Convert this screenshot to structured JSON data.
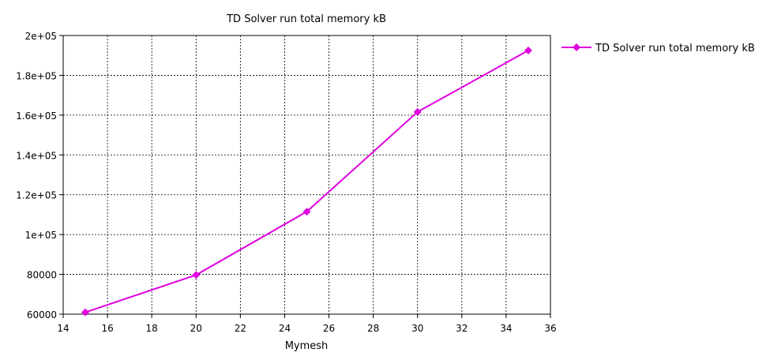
{
  "chart_data": {
    "type": "line",
    "title": "TD Solver run total memory kB",
    "xlabel": "Mymesh",
    "ylabel": "",
    "xlim": [
      14,
      36
    ],
    "ylim": [
      60000,
      200000
    ],
    "x_ticks": [
      14,
      16,
      18,
      20,
      22,
      24,
      26,
      28,
      30,
      32,
      34,
      36
    ],
    "x_tick_labels": [
      "14",
      "16",
      "18",
      "20",
      "22",
      "24",
      "26",
      "28",
      "30",
      "32",
      "34",
      "36"
    ],
    "y_ticks": [
      60000,
      80000,
      100000,
      120000,
      140000,
      160000,
      180000,
      200000
    ],
    "y_tick_labels": [
      "60000",
      "80000",
      "1e+05",
      "1.2e+05",
      "1.4e+05",
      "1.6e+05",
      "1.8e+05",
      "2e+05"
    ],
    "grid": true,
    "legend_position": "right",
    "series": [
      {
        "name": "TD Solver run total memory kB",
        "color": "#e000e0",
        "marker": "diamond",
        "x": [
          15,
          20,
          25,
          30,
          35
        ],
        "y": [
          60900,
          79700,
          111500,
          161600,
          192500
        ]
      }
    ]
  }
}
